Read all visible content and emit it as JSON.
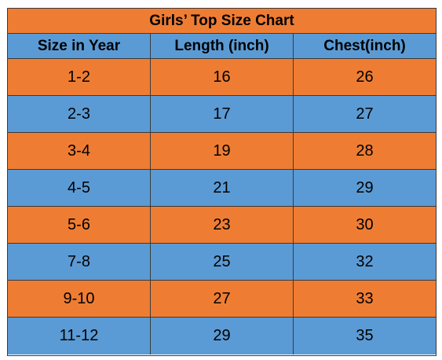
{
  "table": {
    "title": "Girls’ Top Size Chart",
    "columns": [
      "Size in Year",
      "Length (inch)",
      "Chest(inch)"
    ],
    "rows": [
      [
        "1-2",
        "16",
        "26"
      ],
      [
        "2-3",
        "17",
        "27"
      ],
      [
        "3-4",
        "19",
        "28"
      ],
      [
        "4-5",
        "21",
        "29"
      ],
      [
        "5-6",
        "23",
        "30"
      ],
      [
        "7-8",
        "25",
        "32"
      ],
      [
        "9-10",
        "27",
        "33"
      ],
      [
        "11-12",
        "29",
        "35"
      ]
    ]
  },
  "colors": {
    "orange": "#ee7d33",
    "blue": "#5b9bd5",
    "header_blue": "#5b9bd5",
    "border": "#3a3a3a"
  }
}
